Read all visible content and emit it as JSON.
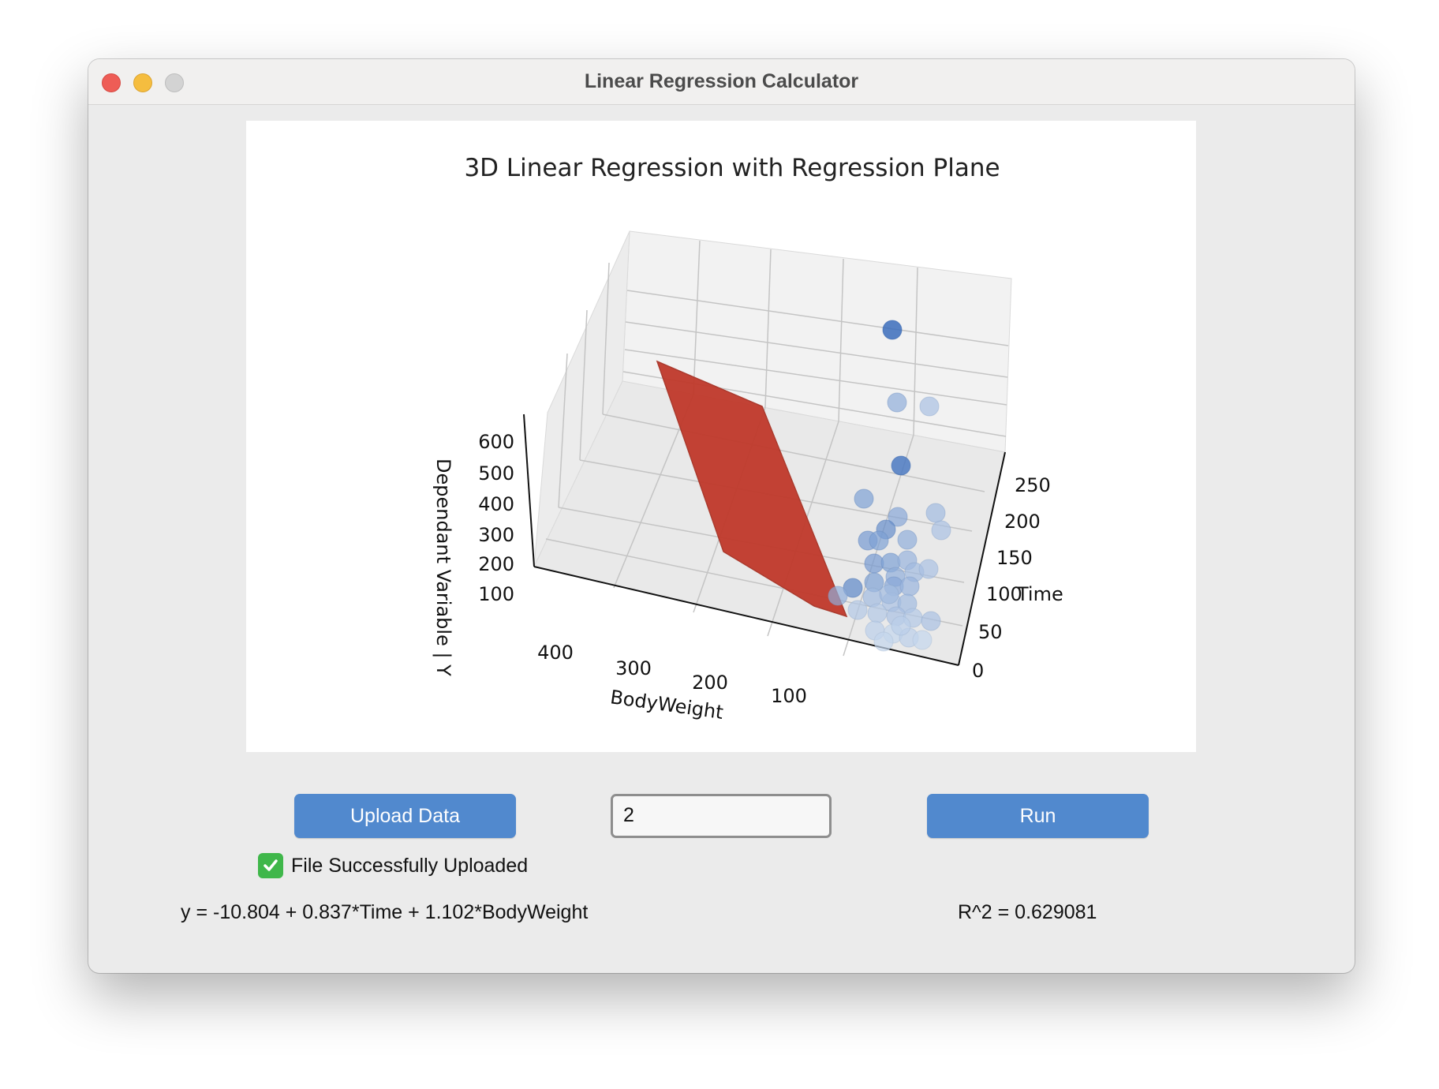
{
  "window": {
    "title": "Linear Regression Calculator"
  },
  "chart_data": {
    "type": "scatter",
    "subtype": "3d-scatter-with-regression-plane",
    "title": "3D Linear Regression with Regression Plane",
    "xlabel": "BodyWeight",
    "ylabel": "Time",
    "zlabel": "Dependant Variable | Y",
    "x_ticks": [
      "400",
      "300",
      "200",
      "100"
    ],
    "y_ticks": [
      "0",
      "50",
      "100",
      "150",
      "200",
      "250"
    ],
    "z_ticks": [
      "100",
      "200",
      "300",
      "400",
      "500",
      "600"
    ],
    "plane_color": "#c0392b",
    "point_colormap": "Blues",
    "grid": true
  },
  "controls": {
    "upload_label": "Upload Data",
    "input_value": "2",
    "run_label": "Run"
  },
  "status": {
    "text": "File Successfully Uploaded",
    "icon": "check-icon"
  },
  "results": {
    "equation": "y = -10.804 + 0.837*Time + 1.102*BodyWeight",
    "r_squared": "R^2 = 0.629081"
  }
}
